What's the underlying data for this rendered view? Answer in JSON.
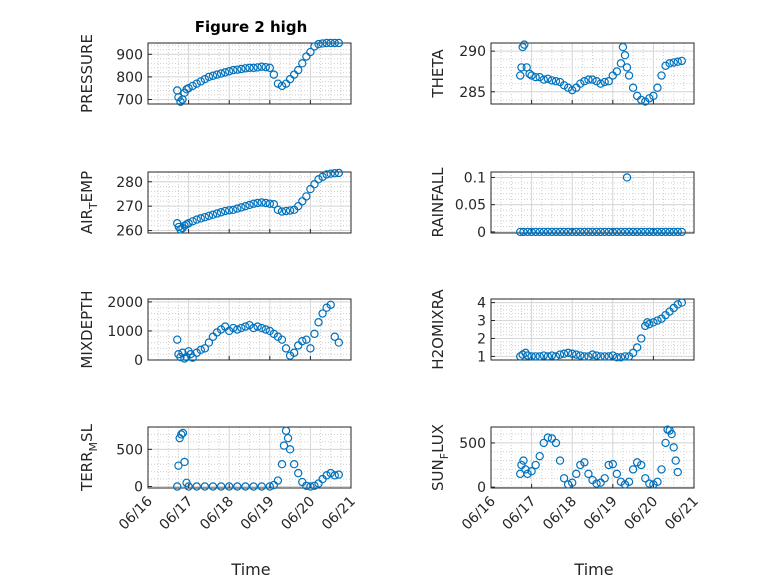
{
  "figure": {
    "title": "Figure 2 high",
    "xlabel": "Time",
    "x_ticks": [
      "06/16",
      "06/17",
      "06/18",
      "06/19",
      "06/20",
      "06/21"
    ],
    "marker_color": "#0072BD",
    "marker": "circle",
    "grid": "on (major + minor)"
  },
  "chart_data": [
    {
      "id": "pressure",
      "type": "scatter",
      "title": "Figure 2 high",
      "ylabel": {
        "main": "PRESSURE"
      },
      "xlim": [
        "06/16",
        "06/21"
      ],
      "ylim": [
        680,
        950
      ],
      "y_ticks": [
        700,
        800,
        900
      ],
      "x": [
        16.72,
        16.75,
        16.8,
        16.85,
        16.9,
        16.95,
        17.0,
        17.1,
        17.2,
        17.3,
        17.4,
        17.5,
        17.6,
        17.7,
        17.8,
        17.9,
        18.0,
        18.1,
        18.2,
        18.3,
        18.4,
        18.5,
        18.6,
        18.7,
        18.8,
        18.9,
        19.0,
        19.1,
        19.2,
        19.3,
        19.4,
        19.5,
        19.6,
        19.7,
        19.8,
        19.9,
        20.0,
        20.1,
        20.2,
        20.3,
        20.4,
        20.5,
        20.6,
        20.7
      ],
      "y": [
        740,
        710,
        690,
        700,
        730,
        745,
        750,
        760,
        770,
        780,
        790,
        800,
        805,
        810,
        815,
        820,
        825,
        830,
        832,
        835,
        838,
        840,
        840,
        842,
        845,
        843,
        840,
        810,
        770,
        760,
        770,
        790,
        810,
        830,
        860,
        890,
        910,
        935,
        945,
        948,
        950,
        950,
        950,
        950
      ]
    },
    {
      "id": "theta",
      "type": "scatter",
      "ylabel": {
        "main": "THETA"
      },
      "xlim": [
        "06/16",
        "06/21"
      ],
      "ylim": [
        283.5,
        291
      ],
      "y_ticks": [
        285,
        290
      ],
      "x": [
        16.72,
        16.75,
        16.78,
        16.82,
        16.88,
        16.95,
        17.0,
        17.1,
        17.2,
        17.3,
        17.4,
        17.5,
        17.6,
        17.7,
        17.8,
        17.9,
        18.0,
        18.1,
        18.2,
        18.3,
        18.4,
        18.5,
        18.6,
        18.7,
        18.8,
        18.9,
        19.0,
        19.1,
        19.2,
        19.25,
        19.3,
        19.35,
        19.4,
        19.5,
        19.6,
        19.7,
        19.8,
        19.9,
        20.0,
        20.1,
        20.2,
        20.3,
        20.4,
        20.5,
        20.6,
        20.7
      ],
      "y": [
        287,
        288,
        290.5,
        290.8,
        288,
        287.2,
        287,
        286.8,
        286.8,
        286.5,
        286.6,
        286.4,
        286.3,
        286.2,
        285.8,
        285.5,
        285.2,
        285.5,
        286.0,
        286.3,
        286.5,
        286.5,
        286.3,
        286.0,
        286.2,
        286.3,
        287.0,
        287.5,
        288.5,
        290.5,
        289.5,
        288,
        287,
        285.5,
        284.5,
        284.0,
        283.8,
        284.2,
        284.5,
        285.5,
        287,
        288.2,
        288.5,
        288.6,
        288.7,
        288.8
      ]
    },
    {
      "id": "airtemp",
      "type": "scatter",
      "ylabel": {
        "main": "AIR",
        "sub": "T",
        "tail": "EMP"
      },
      "xlim": [
        "06/16",
        "06/21"
      ],
      "ylim": [
        259,
        284
      ],
      "y_ticks": [
        260,
        270,
        280
      ],
      "x": [
        16.72,
        16.76,
        16.8,
        16.85,
        16.9,
        16.95,
        17.0,
        17.1,
        17.2,
        17.3,
        17.4,
        17.5,
        17.6,
        17.7,
        17.8,
        17.9,
        18.0,
        18.1,
        18.2,
        18.3,
        18.4,
        18.5,
        18.6,
        18.7,
        18.8,
        18.9,
        19.0,
        19.1,
        19.2,
        19.3,
        19.4,
        19.5,
        19.6,
        19.7,
        19.8,
        19.9,
        20.0,
        20.1,
        20.2,
        20.3,
        20.4,
        20.5,
        20.6,
        20.7
      ],
      "y": [
        263,
        261.5,
        260.5,
        261,
        262,
        262.5,
        263,
        263.8,
        264.5,
        265,
        265.5,
        266,
        266.5,
        267,
        267.5,
        268,
        268.3,
        268.5,
        269,
        269.5,
        270,
        270.5,
        271,
        271.3,
        271.5,
        271.3,
        271.0,
        270.8,
        268.5,
        267.8,
        268,
        268.2,
        268.5,
        270,
        272,
        274,
        277,
        279,
        281,
        282,
        283,
        283.3,
        283.5,
        283.6
      ]
    },
    {
      "id": "rainfall",
      "type": "scatter",
      "ylabel": {
        "main": "RAINFALL"
      },
      "xlim": [
        "06/16",
        "06/21"
      ],
      "ylim": [
        -0.002,
        0.11
      ],
      "y_ticks": [
        "0",
        "0.05",
        "0.1"
      ],
      "x": [
        16.72,
        16.8,
        16.9,
        17.0,
        17.1,
        17.2,
        17.3,
        17.4,
        17.5,
        17.6,
        17.7,
        17.8,
        17.9,
        18.0,
        18.1,
        18.2,
        18.3,
        18.4,
        18.5,
        18.6,
        18.7,
        18.8,
        18.9,
        19.0,
        19.1,
        19.2,
        19.3,
        19.35,
        19.4,
        19.5,
        19.6,
        19.7,
        19.8,
        19.9,
        20.0,
        20.1,
        20.2,
        20.3,
        20.4,
        20.5,
        20.6,
        20.7
      ],
      "y": [
        0,
        0,
        0,
        0,
        0,
        0,
        0,
        0,
        0,
        0,
        0,
        0,
        0,
        0,
        0,
        0,
        0,
        0,
        0,
        0,
        0,
        0,
        0,
        0,
        0,
        0,
        0,
        0.1,
        0,
        0,
        0,
        0,
        0,
        0,
        0,
        0,
        0,
        0,
        0,
        0,
        0,
        0
      ]
    },
    {
      "id": "mixdepth",
      "type": "scatter",
      "ylabel": {
        "main": "MIXDEPTH"
      },
      "xlim": [
        "06/16",
        "06/21"
      ],
      "ylim": [
        0,
        2100
      ],
      "y_ticks": [
        0,
        1000,
        2000
      ],
      "x": [
        16.72,
        16.75,
        16.8,
        16.85,
        16.9,
        16.95,
        17.0,
        17.05,
        17.1,
        17.2,
        17.3,
        17.4,
        17.5,
        17.6,
        17.7,
        17.8,
        17.9,
        18.0,
        18.1,
        18.2,
        18.3,
        18.4,
        18.5,
        18.6,
        18.7,
        18.8,
        18.9,
        19.0,
        19.1,
        19.2,
        19.3,
        19.4,
        19.5,
        19.6,
        19.7,
        19.8,
        19.9,
        20.0,
        20.1,
        20.2,
        20.3,
        20.4,
        20.5,
        20.6,
        20.7
      ],
      "y": [
        700,
        200,
        100,
        250,
        50,
        100,
        300,
        200,
        80,
        250,
        350,
        400,
        600,
        800,
        950,
        1050,
        1150,
        1000,
        1100,
        1050,
        1100,
        1150,
        1200,
        1100,
        1150,
        1100,
        1050,
        1000,
        900,
        800,
        700,
        400,
        150,
        250,
        500,
        650,
        700,
        400,
        900,
        1300,
        1600,
        1800,
        1900,
        800,
        600
      ]
    },
    {
      "id": "h2omixra",
      "type": "scatter",
      "ylabel": {
        "main": "H2OMIXRA"
      },
      "xlim": [
        "06/16",
        "06/21"
      ],
      "ylim": [
        0.8,
        4.2
      ],
      "y_ticks": [
        1,
        2,
        3,
        4
      ],
      "x": [
        16.72,
        16.78,
        16.85,
        16.9,
        17.0,
        17.1,
        17.2,
        17.3,
        17.4,
        17.5,
        17.6,
        17.7,
        17.8,
        17.9,
        18.0,
        18.1,
        18.2,
        18.3,
        18.4,
        18.5,
        18.6,
        18.7,
        18.8,
        18.9,
        19.0,
        19.1,
        19.2,
        19.3,
        19.4,
        19.5,
        19.6,
        19.7,
        19.8,
        19.85,
        19.9,
        20.0,
        20.1,
        20.2,
        20.3,
        20.4,
        20.5,
        20.6,
        20.7
      ],
      "y": [
        1.0,
        1.1,
        1.2,
        1.05,
        1.0,
        1.0,
        1.0,
        1.05,
        1.0,
        1.05,
        1.0,
        1.1,
        1.15,
        1.2,
        1.15,
        1.1,
        1.05,
        1.0,
        1.0,
        1.1,
        1.05,
        1.0,
        1.0,
        1.0,
        1.05,
        0.95,
        0.95,
        1.0,
        1.0,
        1.2,
        1.5,
        2.0,
        2.7,
        2.9,
        2.8,
        2.9,
        3.0,
        3.1,
        3.3,
        3.5,
        3.7,
        3.9,
        4.0
      ]
    },
    {
      "id": "terrmsl",
      "type": "scatter",
      "ylabel": {
        "main": "TERR",
        "sub": "M",
        "tail": "SL"
      },
      "xlim": [
        "06/16",
        "06/21"
      ],
      "ylim": [
        -20,
        800
      ],
      "y_ticks": [
        0,
        500
      ],
      "x": [
        16.72,
        16.75,
        16.78,
        16.82,
        16.86,
        16.9,
        16.95,
        17.0,
        17.2,
        17.4,
        17.6,
        17.8,
        18.0,
        18.2,
        18.4,
        18.6,
        18.8,
        19.0,
        19.1,
        19.2,
        19.3,
        19.35,
        19.4,
        19.45,
        19.5,
        19.6,
        19.7,
        19.8,
        19.9,
        20.0,
        20.1,
        20.2,
        20.3,
        20.4,
        20.5,
        20.6,
        20.7
      ],
      "y": [
        0,
        280,
        650,
        700,
        720,
        330,
        50,
        0,
        0,
        0,
        0,
        0,
        0,
        0,
        0,
        0,
        0,
        0,
        20,
        80,
        300,
        550,
        750,
        650,
        500,
        300,
        180,
        60,
        10,
        0,
        10,
        40,
        100,
        150,
        180,
        150,
        160
      ]
    },
    {
      "id": "sunflux",
      "type": "scatter",
      "ylabel": {
        "main": "SUN",
        "sub": "F",
        "tail": "LUX"
      },
      "xlim": [
        "06/16",
        "06/21"
      ],
      "ylim": [
        -10,
        680
      ],
      "y_ticks": [
        0,
        500
      ],
      "x": [
        16.72,
        16.75,
        16.8,
        16.85,
        16.9,
        17.0,
        17.1,
        17.2,
        17.3,
        17.4,
        17.5,
        17.6,
        17.7,
        17.8,
        17.9,
        18.0,
        18.1,
        18.2,
        18.3,
        18.4,
        18.5,
        18.6,
        18.7,
        18.8,
        18.9,
        19.0,
        19.1,
        19.2,
        19.3,
        19.4,
        19.5,
        19.6,
        19.7,
        19.8,
        19.9,
        20.0,
        20.1,
        20.2,
        20.3,
        20.35,
        20.4,
        20.45,
        20.5,
        20.55,
        20.6
      ],
      "y": [
        150,
        250,
        300,
        200,
        150,
        180,
        250,
        350,
        500,
        560,
        550,
        500,
        300,
        100,
        30,
        50,
        150,
        250,
        280,
        150,
        80,
        40,
        50,
        100,
        250,
        260,
        150,
        60,
        30,
        60,
        200,
        280,
        250,
        100,
        40,
        30,
        60,
        200,
        500,
        650,
        640,
        600,
        450,
        300,
        170
      ]
    }
  ]
}
